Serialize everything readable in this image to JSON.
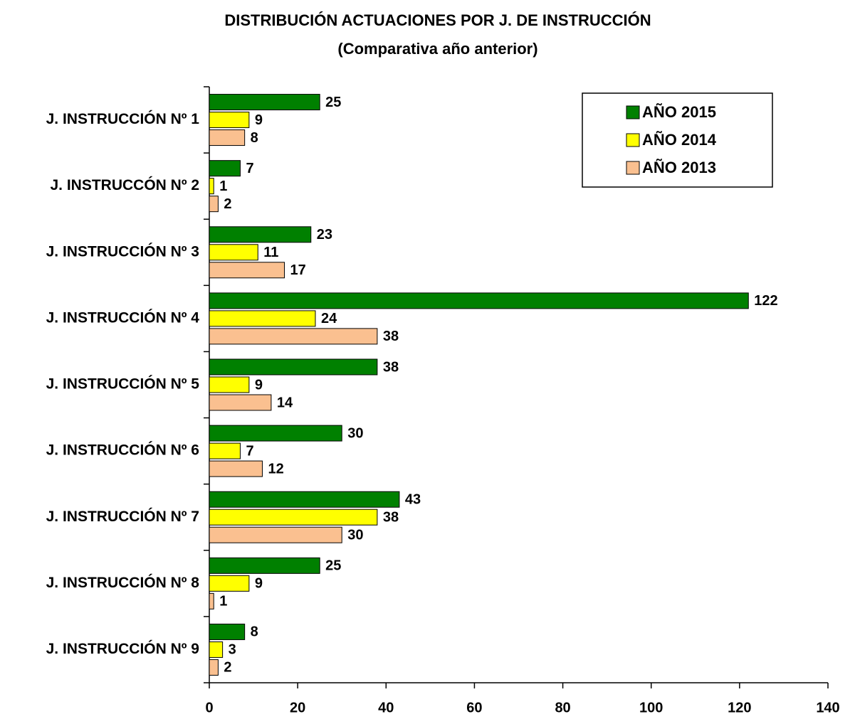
{
  "chart_data": {
    "type": "hbar",
    "title": "DISTRIBUCIÓN ACTUACIONES POR J. DE INSTRUCCIÓN",
    "subtitle": "(Comparativa año anterior)",
    "categories": [
      "J. INSTRUCCIÓN Nº 1",
      "J. INSTRUCCÓN Nº 2",
      "J. INSTRUCCIÓN Nº 3",
      "J. INSTRUCCIÓN Nº 4",
      "J. INSTRUCCIÓN Nº 5",
      "J. INSTRUCCIÓN Nº 6",
      "J. INSTRUCCIÓN Nº 7",
      "J. INSTRUCCIÓN Nº 8",
      "J. INSTRUCCIÓN Nº 9"
    ],
    "series": [
      {
        "name": "AÑO 2015",
        "color": "#008000",
        "values": [
          25,
          7,
          23,
          122,
          38,
          30,
          43,
          25,
          8
        ]
      },
      {
        "name": "AÑO 2014",
        "color": "#ffff00",
        "values": [
          9,
          1,
          11,
          24,
          9,
          7,
          38,
          9,
          3
        ]
      },
      {
        "name": "AÑO 2013",
        "color": "#fac090",
        "values": [
          8,
          2,
          17,
          38,
          14,
          12,
          30,
          1,
          2
        ]
      }
    ],
    "xlim": [
      0,
      140
    ],
    "xticks": [
      0,
      20,
      40,
      60,
      80,
      100,
      120,
      140
    ],
    "legend": "upper right"
  }
}
